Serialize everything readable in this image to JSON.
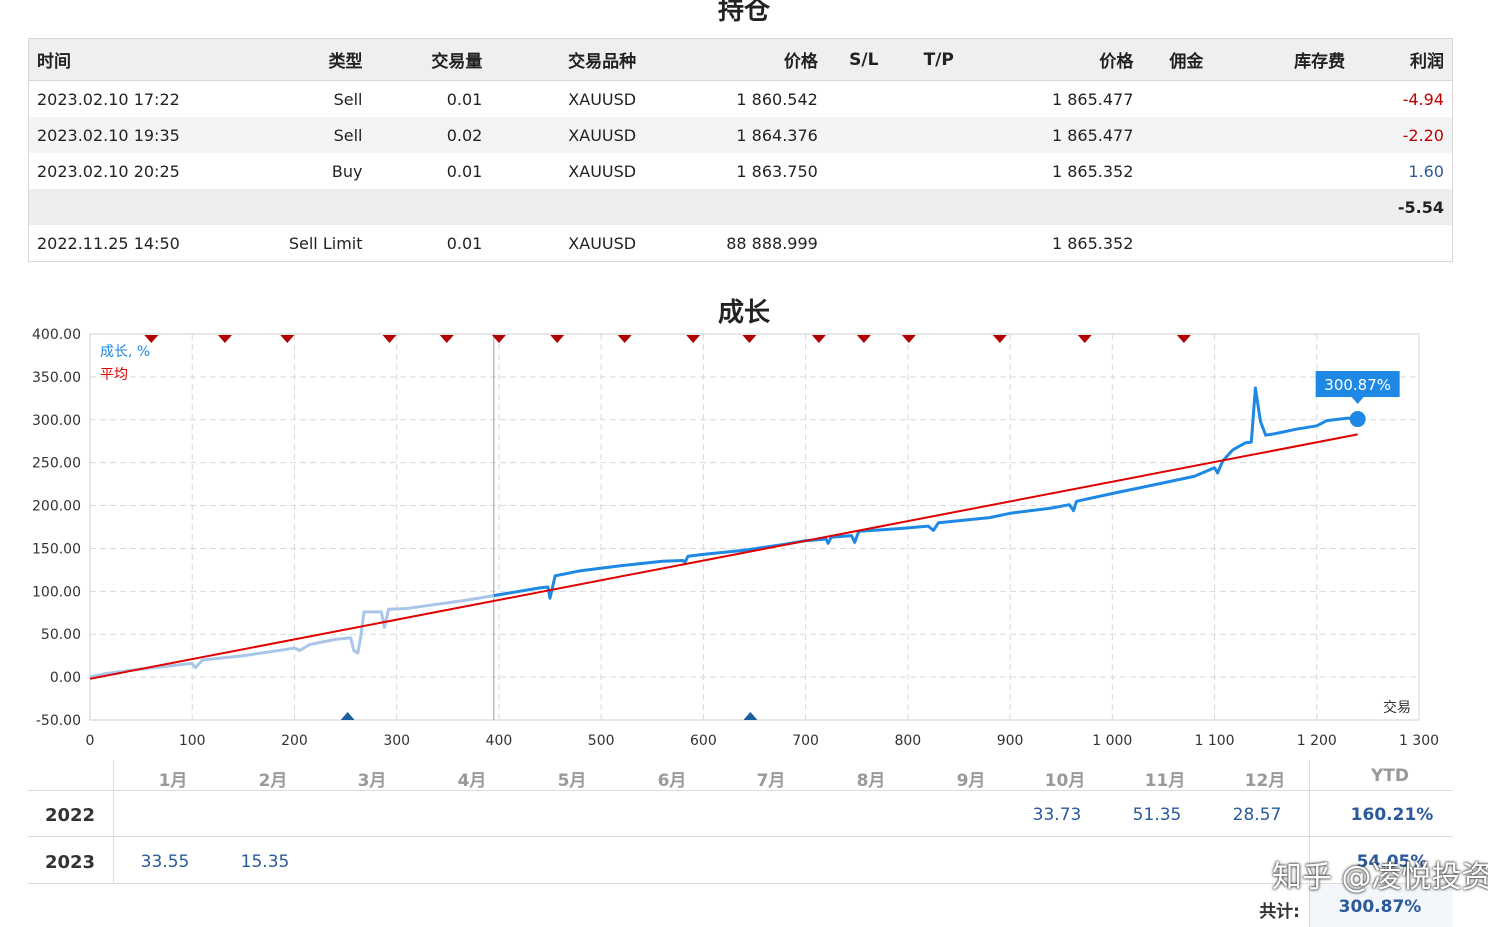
{
  "positions": {
    "title": "持仓",
    "headers": [
      "时间",
      "类型",
      "交易量",
      "交易品种",
      "价格",
      "S/L",
      "T/P",
      "价格",
      "佣金",
      "库存费",
      "利润"
    ],
    "rows": [
      {
        "time": "2023.02.10 17:22",
        "type": "Sell",
        "volume": "0.01",
        "symbol": "XAUUSD",
        "price_open": "1 860.542",
        "sl": "",
        "tp": "",
        "price_current": "1 865.477",
        "commission": "",
        "swap": "",
        "profit": "-4.94"
      },
      {
        "time": "2023.02.10 19:35",
        "type": "Sell",
        "volume": "0.02",
        "symbol": "XAUUSD",
        "price_open": "1 864.376",
        "sl": "",
        "tp": "",
        "price_current": "1 865.477",
        "commission": "",
        "swap": "",
        "profit": "-2.20"
      },
      {
        "time": "2023.02.10 20:25",
        "type": "Buy",
        "volume": "0.01",
        "symbol": "XAUUSD",
        "price_open": "1 863.750",
        "sl": "",
        "tp": "",
        "price_current": "1 865.352",
        "commission": "",
        "swap": "",
        "profit": "1.60"
      }
    ],
    "total_profit": "-5.54",
    "pending": {
      "time": "2022.11.25 14:50",
      "type": "Sell Limit",
      "volume": "0.01",
      "symbol": "XAUUSD",
      "price_open": "88 888.999",
      "price_current": "1 865.352"
    }
  },
  "growth": {
    "title": "成长",
    "legend_growth": "成长, %",
    "legend_average": "平均",
    "current_label": "300.87%",
    "x_axis_title": "交易"
  },
  "chart_data": {
    "type": "line",
    "title": "成长",
    "xlabel": "交易",
    "ylabel": "",
    "xlim": [
      0,
      1300
    ],
    "ylim": [
      -50,
      400
    ],
    "x_ticks": [
      "0",
      "100",
      "200",
      "300",
      "400",
      "500",
      "600",
      "700",
      "800",
      "900",
      "1 000",
      "1 100",
      "1 200",
      "1 300"
    ],
    "y_ticks": [
      "-50.00",
      "0.00",
      "50.00",
      "100.00",
      "150.00",
      "200.00",
      "250.00",
      "300.00",
      "350.00",
      "400.00"
    ],
    "grid": true,
    "legend_position": "top-left",
    "series": [
      {
        "name": "成长, %",
        "color": "#1e88e5",
        "faded_color": "#a9c6e8",
        "faded_until_x": 395,
        "points": [
          [
            0,
            0
          ],
          [
            15,
            4
          ],
          [
            40,
            8
          ],
          [
            70,
            12
          ],
          [
            100,
            16
          ],
          [
            103,
            11
          ],
          [
            110,
            20
          ],
          [
            150,
            25
          ],
          [
            190,
            32
          ],
          [
            200,
            34
          ],
          [
            205,
            31
          ],
          [
            215,
            38
          ],
          [
            240,
            44
          ],
          [
            255,
            46
          ],
          [
            258,
            31
          ],
          [
            262,
            28
          ],
          [
            265,
            48
          ],
          [
            268,
            76
          ],
          [
            285,
            76
          ],
          [
            288,
            58
          ],
          [
            292,
            79
          ],
          [
            310,
            80
          ],
          [
            340,
            85
          ],
          [
            370,
            90
          ],
          [
            395,
            95
          ],
          [
            420,
            100
          ],
          [
            440,
            104
          ],
          [
            448,
            105
          ],
          [
            450,
            92
          ],
          [
            455,
            118
          ],
          [
            480,
            124
          ],
          [
            520,
            130
          ],
          [
            560,
            135
          ],
          [
            580,
            136
          ],
          [
            582,
            134
          ],
          [
            585,
            141
          ],
          [
            600,
            143
          ],
          [
            640,
            148
          ],
          [
            680,
            155
          ],
          [
            700,
            159
          ],
          [
            720,
            161
          ],
          [
            722,
            156
          ],
          [
            725,
            163
          ],
          [
            745,
            165
          ],
          [
            748,
            157
          ],
          [
            752,
            170
          ],
          [
            790,
            173
          ],
          [
            820,
            176
          ],
          [
            825,
            171
          ],
          [
            830,
            180
          ],
          [
            880,
            186
          ],
          [
            900,
            191
          ],
          [
            940,
            197
          ],
          [
            958,
            201
          ],
          [
            962,
            194
          ],
          [
            965,
            205
          ],
          [
            1000,
            214
          ],
          [
            1040,
            224
          ],
          [
            1080,
            234
          ],
          [
            1100,
            244
          ],
          [
            1103,
            238
          ],
          [
            1108,
            252
          ],
          [
            1118,
            265
          ],
          [
            1130,
            273
          ],
          [
            1136,
            274
          ],
          [
            1140,
            337
          ],
          [
            1145,
            298
          ],
          [
            1150,
            282
          ],
          [
            1160,
            284
          ],
          [
            1180,
            289
          ],
          [
            1200,
            293
          ],
          [
            1210,
            299
          ],
          [
            1230,
            302
          ],
          [
            1240,
            300.87
          ]
        ]
      },
      {
        "name": "平均",
        "color": "#e00000",
        "points": [
          [
            0,
            -2
          ],
          [
            1240,
            283
          ]
        ]
      }
    ],
    "event_markers_top_x": [
      60,
      132,
      193,
      293,
      349,
      400,
      457,
      523,
      590,
      645,
      713,
      757,
      801,
      890,
      973,
      1070
    ],
    "event_markers_bottom_x": [
      252,
      646
    ],
    "current_value": {
      "x": 1240,
      "y": 300.87,
      "label": "300.87%"
    }
  },
  "monthly": {
    "headers": [
      "1月",
      "2月",
      "3月",
      "4月",
      "5月",
      "6月",
      "7月",
      "8月",
      "9月",
      "10月",
      "11月",
      "12月"
    ],
    "ytd_header": "YTD",
    "rows": [
      {
        "year": "2022",
        "values": [
          "",
          "",
          "",
          "",
          "",
          "",
          "",
          "",
          "",
          "33.73",
          "51.35",
          "28.57"
        ],
        "ytd": "160.21%"
      },
      {
        "year": "2023",
        "values": [
          "33.55",
          "15.35",
          "",
          "",
          "",
          "",
          "",
          "",
          "",
          "",
          "",
          ""
        ],
        "ytd": "54.05%"
      }
    ],
    "total_label": "共计:",
    "total_value": "300.87%"
  },
  "watermark": "知乎 @凌悦投资"
}
